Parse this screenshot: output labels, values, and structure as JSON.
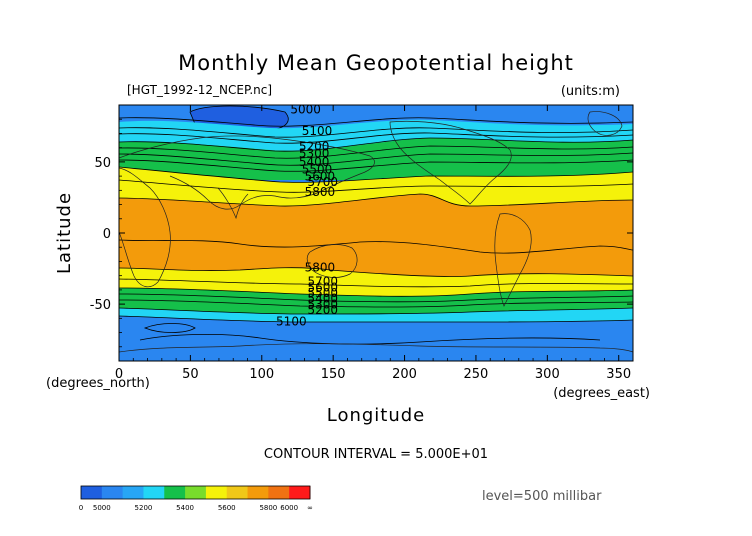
{
  "chart_data": {
    "type": "heatmap",
    "title": "Monthly Mean Geopotential height",
    "source_label": "[HGT_1992-12_NCEP.nc]",
    "units_label": "(units:m)",
    "xlabel": "Longitude",
    "ylabel": "Latitude",
    "x_unit_label": "(degrees_east)",
    "y_unit_label": "(degrees_north)",
    "xlim": [
      0,
      360
    ],
    "ylim": [
      -90,
      90
    ],
    "x_ticks": [
      0,
      50,
      100,
      150,
      200,
      250,
      300,
      350
    ],
    "y_ticks": [
      -50,
      0,
      50
    ],
    "contour_interval_label": "CONTOUR INTERVAL = 5.000E+01",
    "level_label": "level=500 millibar",
    "contour_labels": [
      {
        "text": "5000",
        "x": 120,
        "y": 84
      },
      {
        "text": "5100",
        "x": 128,
        "y": 69
      },
      {
        "text": "5200",
        "x": 126,
        "y": 58
      },
      {
        "text": "5300",
        "x": 126,
        "y": 53
      },
      {
        "text": "5400",
        "x": 126,
        "y": 47
      },
      {
        "text": "5500",
        "x": 128,
        "y": 42
      },
      {
        "text": "5600",
        "x": 130,
        "y": 37
      },
      {
        "text": "5700",
        "x": 132,
        "y": 33
      },
      {
        "text": "5800",
        "x": 130,
        "y": 26
      },
      {
        "text": "5800",
        "x": 130,
        "y": -27
      },
      {
        "text": "5700",
        "x": 132,
        "y": -37
      },
      {
        "text": "5600",
        "x": 132,
        "y": -41
      },
      {
        "text": "5500",
        "x": 132,
        "y": -45
      },
      {
        "text": "5400",
        "x": 132,
        "y": -49
      },
      {
        "text": "5300",
        "x": 132,
        "y": -53
      },
      {
        "text": "5200",
        "x": 132,
        "y": -57
      },
      {
        "text": "5100",
        "x": 110,
        "y": -65
      }
    ],
    "colorbar": {
      "labels": [
        "0",
        "5000",
        "5200",
        "5400",
        "5600",
        "5800",
        "6000",
        "∞"
      ],
      "colors": [
        "#1f5fe0",
        "#2a86f0",
        "#27a6f5",
        "#22d6f5",
        "#15c04a",
        "#78dc2c",
        "#f5f20a",
        "#f0c818",
        "#f39b0b",
        "#f07212",
        "#ff1a1a"
      ]
    },
    "bands": [
      {
        "range": "<5000",
        "color": "#1f5fe0"
      },
      {
        "range": "5000-5200",
        "color": "#2a86f0"
      },
      {
        "range": "5200-5300",
        "color": "#22d6f5"
      },
      {
        "range": "5300-5500",
        "color": "#15c04a"
      },
      {
        "range": "5500-5600",
        "color": "#78dc2c"
      },
      {
        "range": "5600-5800",
        "color": "#f5f20a"
      },
      {
        "range": ">5800",
        "color": "#f39b0b"
      }
    ]
  }
}
